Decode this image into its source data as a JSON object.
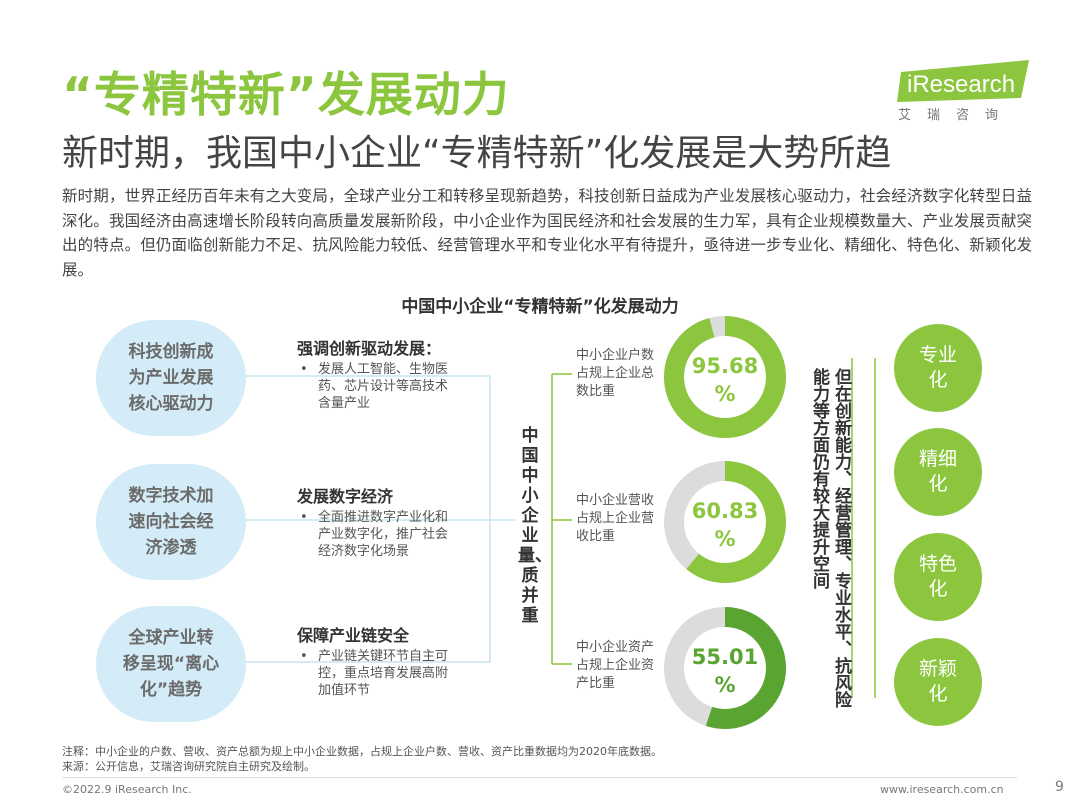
{
  "header": {
    "title": "“专精特新”发展动力",
    "subtitle": "新时期，我国中小企业“专精特新”化发展是大势所趋",
    "logo_text": "iResearch",
    "logo_cn": "艾瑞咨询"
  },
  "intro": "新时期，世界正经历百年未有之大变局，全球产业分工和转移呈现新趋势，科技创新日益成为产业发展核心驱动力，社会经济数字化转型日益深化。我国经济由高速增长阶段转向高质量发展新阶段，中小企业作为国民经济和社会发展的生力军，具有企业规模数量大、产业发展贡献突出的特点。但仍面临创新能力不足、抗风险能力较低、经营管理水平和专业化水平有待提升，亟待进一步专业化、精细化、特色化、新颖化发展。",
  "diagram": {
    "title": "中国中小企业“专精特新”化发展动力",
    "drivers": [
      {
        "bubble": "科技创新成为产业发展核心驱动力",
        "heading": "强调创新驱动发展：",
        "bullet": "发展人工智能、生物医药、芯片设计等高技术含量产业"
      },
      {
        "bubble": "数字技术加速向社会经济渗透",
        "heading": "发展数字经济",
        "bullet": "全面推进数字产业化和产业数字化，推广社会经济数字化场景"
      },
      {
        "bubble": "全球产业转移呈现“离心化”趋势",
        "heading": "保障产业链安全",
        "bullet": "产业链关键环节自主可控，重点培育发展高附加值环节"
      }
    ],
    "bullet_symbol": "•",
    "center_label": "中国中小企业量、质并重",
    "rings": [
      {
        "label": "中小企业户数占规上企业总数比重",
        "value": 95.68,
        "value_text": "95.68",
        "unit": "%"
      },
      {
        "label": "中小企业营收占规上企业营收比重",
        "value": 60.83,
        "value_text": "60.83",
        "unit": "%"
      },
      {
        "label": "中小企业资产占规上企业资产比重",
        "value": 55.01,
        "value_text": "55.01",
        "unit": "%"
      }
    ],
    "challenge_text": "但在创新能力、经营管理、专业水平、抗风险能力等方面仍有较大提升空间",
    "goals": [
      "专业化",
      "精细化",
      "特色化",
      "新颖化"
    ]
  },
  "colors": {
    "accent_green": "#8cc63e",
    "dark_green": "#5aa532",
    "bubble_blue": "#d3ecf7",
    "ring_track": "#dcdcdc",
    "connector_blue": "#c5e3f1"
  },
  "footer": {
    "note": "注释：中小企业的户数、营收、资产总额为规上中小企业数据，占规上企业户数、营收、资产比重数据均为2020年底数据。",
    "source": "来源：公开信息，艾瑞咨询研究院自主研究及绘制。",
    "copyright": "©2022.9 iResearch Inc.",
    "website": "www.iresearch.com.cn",
    "page": "9"
  }
}
